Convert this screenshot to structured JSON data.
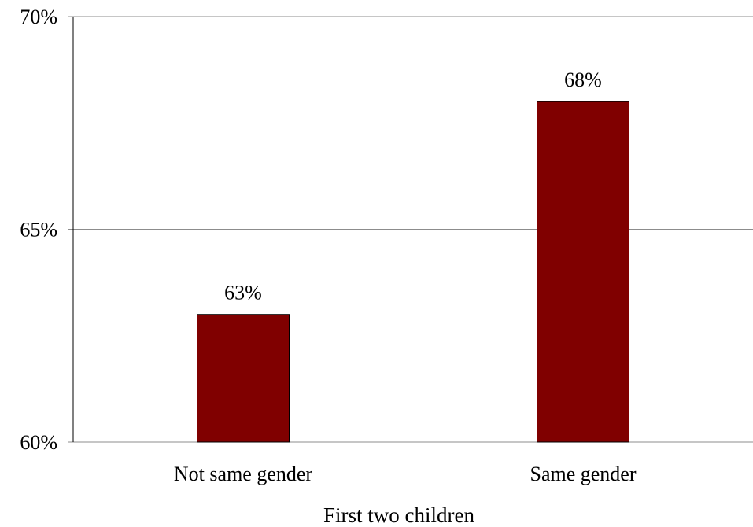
{
  "chart_data": {
    "type": "bar",
    "title": "",
    "xlabel": "First two children",
    "ylabel": "",
    "categories": [
      "Not same gender",
      "Same gender"
    ],
    "values": [
      63,
      68
    ],
    "data_labels": [
      "63%",
      "68%"
    ],
    "ylim": [
      60,
      70
    ],
    "yticks": [
      60,
      65,
      70
    ],
    "ytick_labels": [
      "60%",
      "65%",
      "70%"
    ],
    "grid": true,
    "legend": "none",
    "bar_color": "#800000"
  }
}
